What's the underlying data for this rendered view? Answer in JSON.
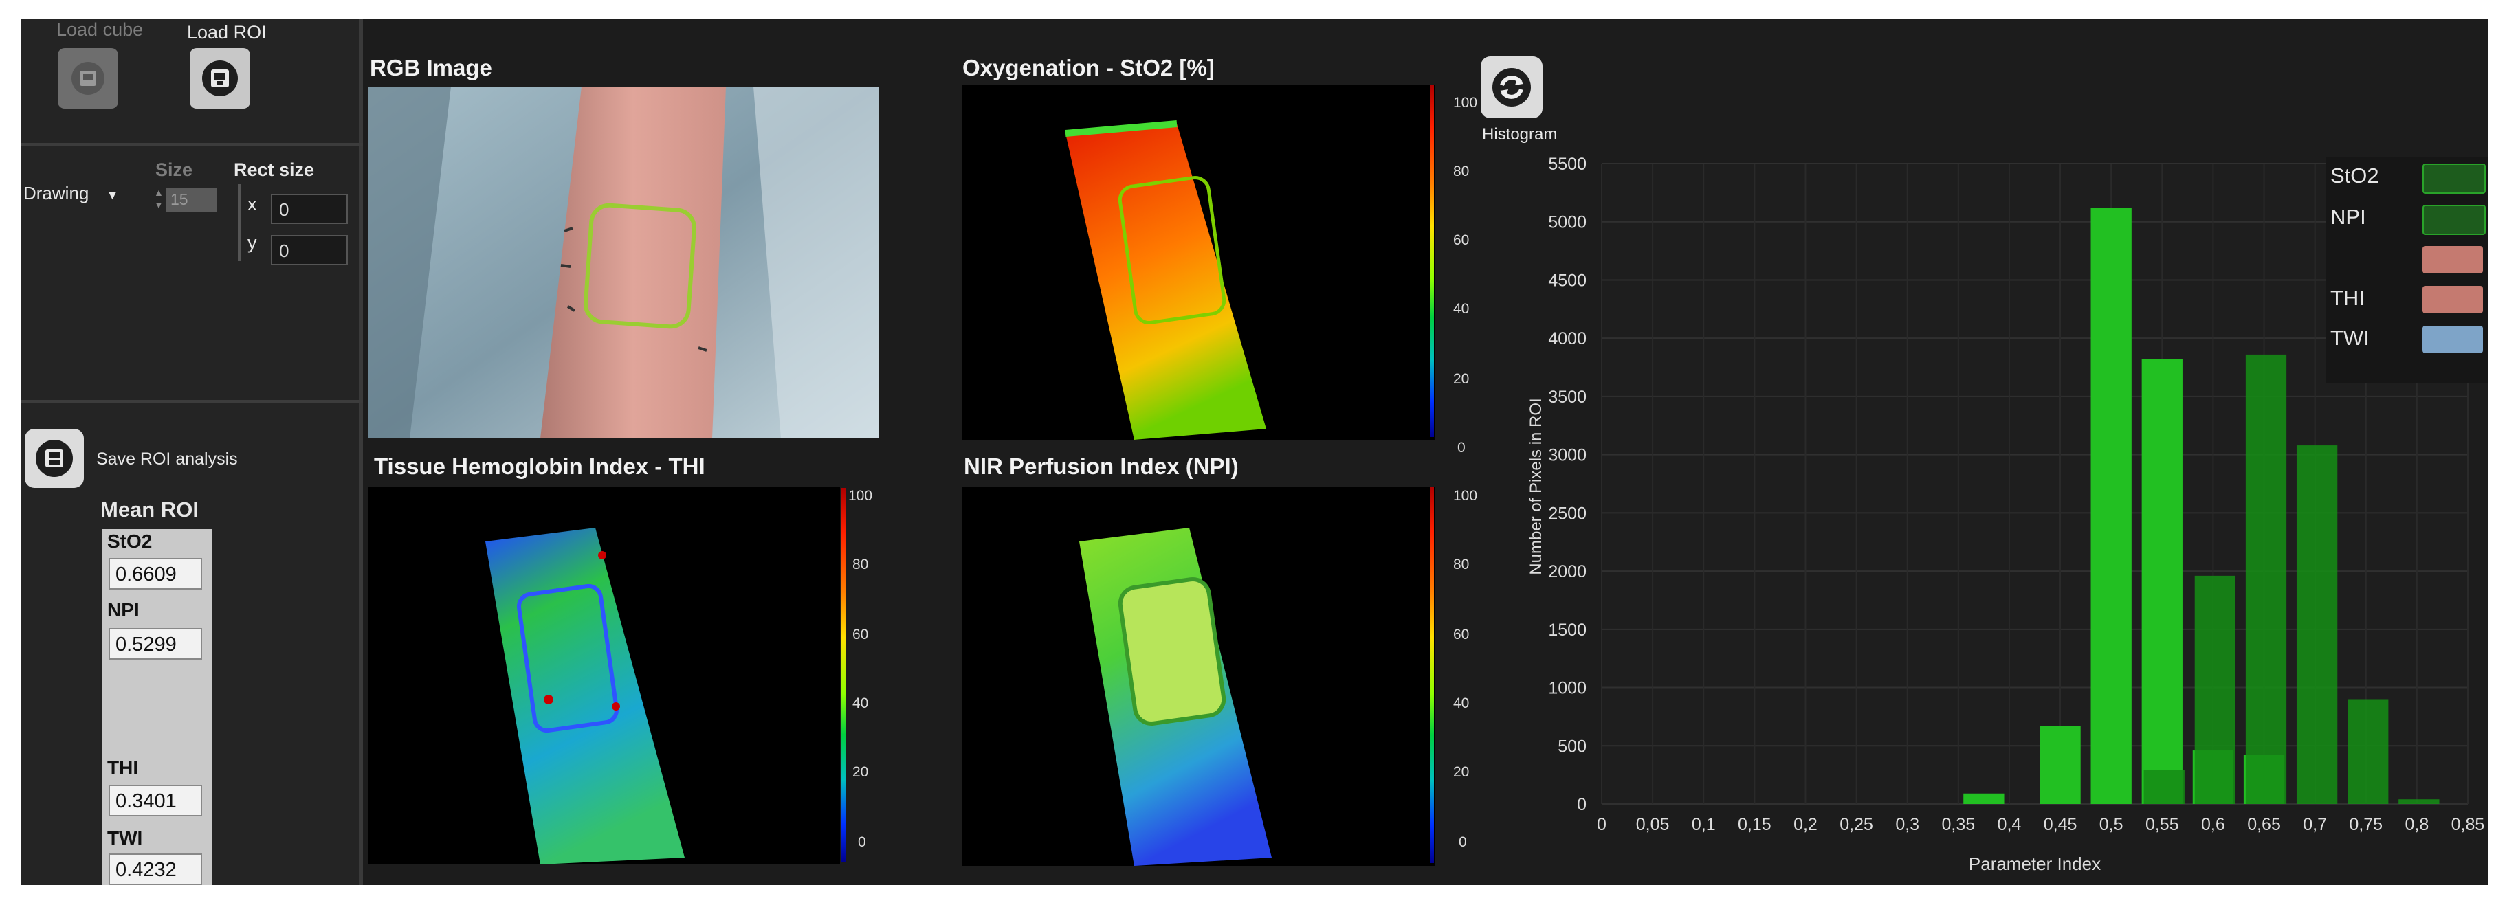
{
  "toolbar": {
    "load_cube": "Load cube",
    "load_roi": "Load ROI"
  },
  "drawing": {
    "mode": "Drawing",
    "size_label": "Size",
    "size_value": "15",
    "rect_size_label": "Rect size",
    "x_label": "x",
    "x_value": "0",
    "y_label": "y",
    "y_value": "0"
  },
  "save": {
    "label": "Save ROI analysis"
  },
  "mean_roi": {
    "title": "Mean ROI",
    "items": [
      {
        "label": "StO2",
        "value": "0.6609"
      },
      {
        "label": "NPI",
        "value": "0.5299"
      },
      {
        "label": "THI",
        "value": "0.3401"
      },
      {
        "label": "TWI",
        "value": "0.4232"
      }
    ]
  },
  "panels": {
    "rgb": "RGB Image",
    "sto2": "Oxygenation - StO2 [%]",
    "thi": "Tissue Hemoglobin Index - THI",
    "npi": "NIR Perfusion Index (NPI)"
  },
  "colorbar_ticks": [
    "100",
    "80",
    "60",
    "40",
    "20",
    "0"
  ],
  "histogram_button": {
    "label": "Histogram"
  },
  "colors": {
    "sto2": "#22c022",
    "npi": "#168c16",
    "thi": "#d98b80",
    "twi": "#8eb4da"
  },
  "chart_data": {
    "type": "bar",
    "title": "",
    "xlabel": "Parameter Index",
    "ylabel": "Number of Pixels in ROI",
    "xlim": [
      0,
      0.85
    ],
    "ylim": [
      0,
      5500
    ],
    "x_ticks": [
      "0",
      "0,05",
      "0,1",
      "0,15",
      "0,2",
      "0,25",
      "0,3",
      "0,35",
      "0,4",
      "0,45",
      "0,5",
      "0,55",
      "0,6",
      "0,65",
      "0,7",
      "0,75",
      "0,8",
      "0,85"
    ],
    "y_ticks": [
      "0",
      "500",
      "1000",
      "1500",
      "2000",
      "2500",
      "3000",
      "3500",
      "4000",
      "4500",
      "5000",
      "5500"
    ],
    "legend_position": "top-right",
    "legend": [
      "StO2",
      "NPI",
      "",
      "THI",
      "TWI"
    ],
    "series": [
      {
        "name": "StO2",
        "x": [
          0.375,
          0.45,
          0.5,
          0.55,
          0.6,
          0.65
        ],
        "values": [
          90,
          670,
          5120,
          3820,
          460,
          420
        ]
      },
      {
        "name": "NPI",
        "x": [
          0.55,
          0.6,
          0.65,
          0.7,
          0.75,
          0.8
        ],
        "values": [
          290,
          1960,
          3860,
          3080,
          900,
          40
        ]
      }
    ]
  }
}
